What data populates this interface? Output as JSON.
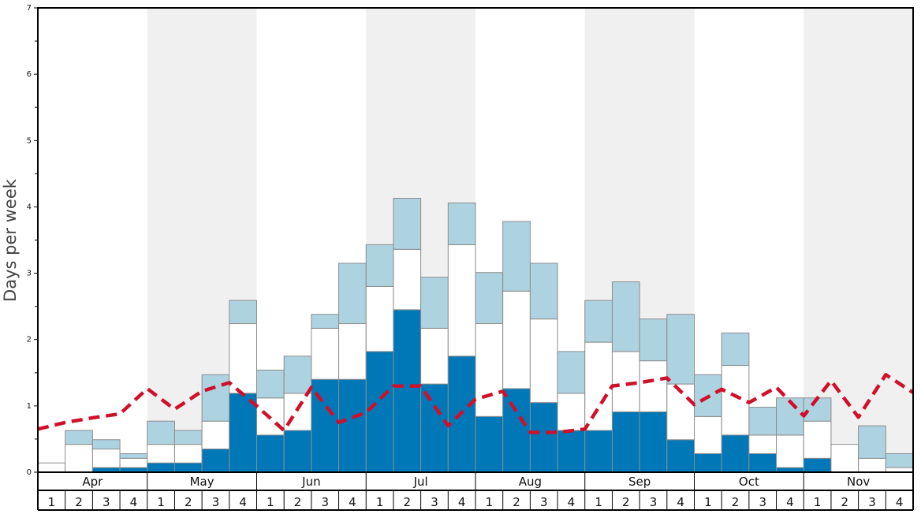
{
  "chart_data": {
    "type": "bar",
    "ylabel": "Days per week",
    "ylim": [
      0,
      7
    ],
    "y_ticks": [
      "0",
      "1",
      "2",
      "3",
      "4",
      "5",
      "6",
      "7"
    ],
    "months": [
      "Apr",
      "May",
      "Jun",
      "Jul",
      "Aug",
      "Sep",
      "Oct",
      "Nov"
    ],
    "week_labels": [
      "1",
      "2",
      "3",
      "4"
    ],
    "series": [
      {
        "color": "#0077b6",
        "values": [
          0,
          0,
          0.07,
          0.07,
          0.14,
          0.14,
          0.35,
          1.19,
          0.56,
          0.63,
          1.4,
          1.4,
          1.82,
          2.45,
          1.33,
          1.75,
          0.84,
          1.26,
          1.05,
          0.63,
          0.63,
          0.91,
          0.91,
          0.49,
          0.28,
          0.56,
          0.28,
          0.07,
          0.21,
          0,
          0,
          0
        ]
      },
      {
        "color": "#ffffff",
        "values": [
          0.14,
          0.42,
          0.28,
          0.14,
          0.28,
          0.28,
          0.42,
          1.05,
          0.56,
          0.56,
          0.77,
          0.84,
          0.98,
          0.91,
          0.84,
          1.68,
          1.4,
          1.47,
          1.26,
          0.56,
          1.33,
          0.91,
          0.77,
          0.84,
          0.56,
          1.05,
          0.28,
          0.49,
          0.56,
          0.42,
          0.21,
          0.07
        ]
      },
      {
        "color": "#aed3e0",
        "values": [
          0,
          0.21,
          0.14,
          0.07,
          0.35,
          0.21,
          0.7,
          0.35,
          0.42,
          0.56,
          0.21,
          0.91,
          0.63,
          0.77,
          0.77,
          0.63,
          0.77,
          1.05,
          0.84,
          0.63,
          0.63,
          1.05,
          0.63,
          1.05,
          0.63,
          0.49,
          0.42,
          0.56,
          0.35,
          0,
          0.49,
          0.21
        ]
      }
    ],
    "average_line": {
      "style": "dashed",
      "color": "#d0102b",
      "values": [
        0.65,
        0.75,
        0.82,
        0.88,
        1.26,
        0.95,
        1.22,
        1.35,
        1.0,
        0.63,
        1.28,
        0.75,
        0.9,
        1.3,
        1.3,
        0.7,
        1.1,
        1.22,
        0.6,
        0.6,
        0.65,
        1.3,
        1.35,
        1.42,
        1.02,
        1.25,
        1.05,
        1.28,
        0.85,
        1.38,
        0.83,
        1.47,
        1.2
      ]
    },
    "grid": false
  }
}
